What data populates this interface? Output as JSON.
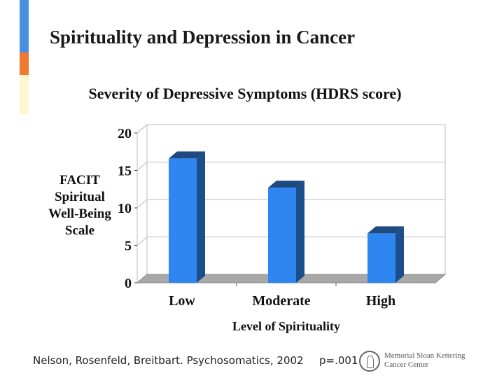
{
  "slide": {
    "title": "Spirituality and Depression in Cancer",
    "accent_colors": [
      "#4a90e2",
      "#f07830",
      "#fdf6cf"
    ]
  },
  "chart_data": {
    "type": "bar",
    "title": "Severity of Depressive Symptoms (HDRS score)",
    "categories": [
      "Low",
      "Moderate",
      "High"
    ],
    "values": [
      16.6,
      12.7,
      6.6
    ],
    "ylabel": [
      "FACIT",
      "Spiritual",
      "Well-Being",
      "Scale"
    ],
    "xlabel": "Level of Spirituality",
    "ylim": [
      0,
      20
    ],
    "yticks": [
      0,
      5,
      10,
      15,
      20
    ],
    "grid": true,
    "style": "3d-bar",
    "colors": {
      "bar_front": "#2f86f0",
      "bar_side": "#1b4f8c",
      "bar_top": "#1d4a80",
      "floor": "#a8a8a8",
      "gridline": "#bcbcbc"
    }
  },
  "footer": {
    "citation": "Nelson, Rosenfeld, Breitbart. Psychosomatics, 2002",
    "p_value": "p=.001"
  },
  "logo": {
    "line1": "Memorial Sloan Kettering",
    "line2": "Cancer Center"
  }
}
